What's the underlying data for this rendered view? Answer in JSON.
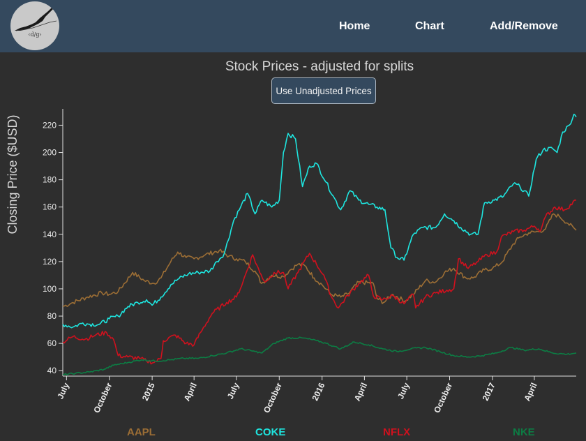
{
  "nav": {
    "logo_text": "‹d/g›",
    "items": [
      "Home",
      "Chart",
      "Add/Remove"
    ]
  },
  "button": {
    "label": "Use Unadjusted Prices"
  },
  "colors": {
    "background": "#2e2e2e",
    "navbar": "#34495e",
    "AAPL": "#9c6e35",
    "COKE": "#1ee6e0",
    "NFLX": "#d0111e",
    "NKE": "#0c7d44"
  },
  "chart_data": {
    "type": "line",
    "title": "Stock Prices - adjusted for splits",
    "ylabel": "Closing Price ($USD)",
    "xlabel": "",
    "ylim": [
      36,
      232
    ],
    "xlim": [
      "2014-06-23",
      "2017-06-30"
    ],
    "y_ticks": [
      40,
      60,
      80,
      100,
      120,
      140,
      160,
      180,
      200,
      220
    ],
    "x_ticks": [
      {
        "label": "July",
        "date": "2014-07-01"
      },
      {
        "label": "October",
        "date": "2014-10-01"
      },
      {
        "label": "2015",
        "date": "2015-01-01"
      },
      {
        "label": "April",
        "date": "2015-04-01"
      },
      {
        "label": "July",
        "date": "2015-07-01"
      },
      {
        "label": "October",
        "date": "2015-10-01"
      },
      {
        "label": "2016",
        "date": "2016-01-01"
      },
      {
        "label": "April",
        "date": "2016-04-01"
      },
      {
        "label": "July",
        "date": "2016-07-01"
      },
      {
        "label": "October",
        "date": "2016-10-01"
      },
      {
        "label": "2017",
        "date": "2017-01-01"
      },
      {
        "label": "April",
        "date": "2017-04-01"
      }
    ],
    "legend_position": "bottom",
    "grid": false,
    "series": [
      {
        "name": "AAPL",
        "color": "#9c6e35",
        "points": [
          [
            "2014-06-23",
            87
          ],
          [
            "2014-07-15",
            90
          ],
          [
            "2014-08-15",
            94
          ],
          [
            "2014-09-15",
            97
          ],
          [
            "2014-10-01",
            96
          ],
          [
            "2014-10-20",
            98
          ],
          [
            "2014-11-20",
            112
          ],
          [
            "2014-12-15",
            106
          ],
          [
            "2015-01-05",
            104
          ],
          [
            "2015-01-20",
            108
          ],
          [
            "2015-02-10",
            120
          ],
          [
            "2015-02-25",
            127
          ],
          [
            "2015-03-15",
            123
          ],
          [
            "2015-04-01",
            122
          ],
          [
            "2015-04-25",
            125
          ],
          [
            "2015-05-25",
            128
          ],
          [
            "2015-06-15",
            124
          ],
          [
            "2015-07-01",
            122
          ],
          [
            "2015-07-20",
            120
          ],
          [
            "2015-08-10",
            113
          ],
          [
            "2015-08-24",
            104
          ],
          [
            "2015-09-15",
            110
          ],
          [
            "2015-10-10",
            109
          ],
          [
            "2015-10-25",
            114
          ],
          [
            "2015-11-10",
            118
          ],
          [
            "2015-11-25",
            117
          ],
          [
            "2015-12-15",
            108
          ],
          [
            "2016-01-01",
            103
          ],
          [
            "2016-01-20",
            96
          ],
          [
            "2016-02-10",
            94
          ],
          [
            "2016-02-25",
            96
          ],
          [
            "2016-03-20",
            105
          ],
          [
            "2016-04-20",
            104
          ],
          [
            "2016-04-28",
            93
          ],
          [
            "2016-05-12",
            90
          ],
          [
            "2016-06-01",
            96
          ],
          [
            "2016-06-27",
            91
          ],
          [
            "2016-07-15",
            96
          ],
          [
            "2016-08-10",
            106
          ],
          [
            "2016-09-01",
            105
          ],
          [
            "2016-09-20",
            112
          ],
          [
            "2016-10-10",
            115
          ],
          [
            "2016-11-05",
            108
          ],
          [
            "2016-11-20",
            108
          ],
          [
            "2016-12-15",
            114
          ],
          [
            "2017-01-01",
            115
          ],
          [
            "2017-01-20",
            119
          ],
          [
            "2017-02-15",
            133
          ],
          [
            "2017-03-01",
            138
          ],
          [
            "2017-03-20",
            141
          ],
          [
            "2017-04-10",
            142
          ],
          [
            "2017-04-25",
            144
          ],
          [
            "2017-05-12",
            155
          ],
          [
            "2017-05-25",
            153
          ],
          [
            "2017-06-12",
            148
          ],
          [
            "2017-06-30",
            143
          ]
        ]
      },
      {
        "name": "COKE",
        "color": "#1ee6e0",
        "points": [
          [
            "2014-06-23",
            74
          ],
          [
            "2014-07-15",
            72
          ],
          [
            "2014-08-05",
            75
          ],
          [
            "2014-08-20",
            74
          ],
          [
            "2014-09-10",
            74
          ],
          [
            "2014-10-01",
            78
          ],
          [
            "2014-10-20",
            80
          ],
          [
            "2014-11-10",
            87
          ],
          [
            "2014-12-01",
            90
          ],
          [
            "2014-12-20",
            92
          ],
          [
            "2015-01-01",
            88
          ],
          [
            "2015-01-20",
            94
          ],
          [
            "2015-02-10",
            103
          ],
          [
            "2015-02-25",
            107
          ],
          [
            "2015-03-20",
            111
          ],
          [
            "2015-04-10",
            112
          ],
          [
            "2015-05-05",
            113
          ],
          [
            "2015-05-20",
            120
          ],
          [
            "2015-06-05",
            126
          ],
          [
            "2015-06-25",
            150
          ],
          [
            "2015-07-10",
            160
          ],
          [
            "2015-07-25",
            170
          ],
          [
            "2015-08-10",
            155
          ],
          [
            "2015-08-25",
            165
          ],
          [
            "2015-09-15",
            160
          ],
          [
            "2015-10-01",
            165
          ],
          [
            "2015-10-10",
            200
          ],
          [
            "2015-10-20",
            214
          ],
          [
            "2015-11-05",
            210
          ],
          [
            "2015-11-20",
            175
          ],
          [
            "2015-12-05",
            190
          ],
          [
            "2015-12-20",
            192
          ],
          [
            "2016-01-10",
            178
          ],
          [
            "2016-01-25",
            168
          ],
          [
            "2016-02-10",
            158
          ],
          [
            "2016-03-01",
            172
          ],
          [
            "2016-03-20",
            165
          ],
          [
            "2016-04-10",
            162
          ],
          [
            "2016-04-28",
            160
          ],
          [
            "2016-05-15",
            158
          ],
          [
            "2016-05-28",
            130
          ],
          [
            "2016-06-10",
            123
          ],
          [
            "2016-06-25",
            121
          ],
          [
            "2016-07-15",
            140
          ],
          [
            "2016-08-05",
            145
          ],
          [
            "2016-09-01",
            145
          ],
          [
            "2016-09-20",
            155
          ],
          [
            "2016-10-10",
            150
          ],
          [
            "2016-10-25",
            145
          ],
          [
            "2016-11-15",
            140
          ],
          [
            "2016-12-01",
            140
          ],
          [
            "2016-12-15",
            163
          ],
          [
            "2017-01-05",
            165
          ],
          [
            "2017-01-25",
            168
          ],
          [
            "2017-02-15",
            177
          ],
          [
            "2017-03-01",
            175
          ],
          [
            "2017-03-20",
            168
          ],
          [
            "2017-04-05",
            195
          ],
          [
            "2017-04-20",
            202
          ],
          [
            "2017-05-10",
            203
          ],
          [
            "2017-05-20",
            200
          ],
          [
            "2017-06-01",
            215
          ],
          [
            "2017-06-15",
            220
          ],
          [
            "2017-06-25",
            228
          ],
          [
            "2017-06-30",
            226
          ]
        ]
      },
      {
        "name": "NFLX",
        "color": "#d0111e",
        "points": [
          [
            "2014-06-23",
            61
          ],
          [
            "2014-07-15",
            65
          ],
          [
            "2014-08-10",
            63
          ],
          [
            "2014-09-01",
            66
          ],
          [
            "2014-09-25",
            68
          ],
          [
            "2014-10-10",
            63
          ],
          [
            "2014-10-20",
            51
          ],
          [
            "2014-11-10",
            50
          ],
          [
            "2014-12-05",
            49
          ],
          [
            "2014-12-20",
            47
          ],
          [
            "2015-01-05",
            46
          ],
          [
            "2015-01-20",
            49
          ],
          [
            "2015-01-25",
            62
          ],
          [
            "2015-02-20",
            66
          ],
          [
            "2015-03-15",
            60
          ],
          [
            "2015-04-01",
            59
          ],
          [
            "2015-04-15",
            68
          ],
          [
            "2015-05-10",
            82
          ],
          [
            "2015-06-10",
            90
          ],
          [
            "2015-07-01",
            94
          ],
          [
            "2015-07-15",
            105
          ],
          [
            "2015-08-05",
            125
          ],
          [
            "2015-08-20",
            112
          ],
          [
            "2015-09-01",
            105
          ],
          [
            "2015-09-20",
            112
          ],
          [
            "2015-10-10",
            112
          ],
          [
            "2015-10-20",
            100
          ],
          [
            "2015-11-10",
            112
          ],
          [
            "2015-12-05",
            126
          ],
          [
            "2015-12-20",
            118
          ],
          [
            "2016-01-05",
            110
          ],
          [
            "2016-01-20",
            95
          ],
          [
            "2016-02-05",
            86
          ],
          [
            "2016-02-25",
            95
          ],
          [
            "2016-03-20",
            104
          ],
          [
            "2016-04-10",
            110
          ],
          [
            "2016-04-20",
            95
          ],
          [
            "2016-05-10",
            92
          ],
          [
            "2016-06-01",
            95
          ],
          [
            "2016-06-25",
            89
          ],
          [
            "2016-07-15",
            96
          ],
          [
            "2016-07-20",
            86
          ],
          [
            "2016-08-10",
            94
          ],
          [
            "2016-09-01",
            97
          ],
          [
            "2016-09-25",
            99
          ],
          [
            "2016-10-10",
            100
          ],
          [
            "2016-10-20",
            122
          ],
          [
            "2016-11-10",
            115
          ],
          [
            "2016-12-01",
            120
          ],
          [
            "2016-12-20",
            125
          ],
          [
            "2017-01-10",
            127
          ],
          [
            "2017-01-20",
            138
          ],
          [
            "2017-02-15",
            142
          ],
          [
            "2017-03-10",
            143
          ],
          [
            "2017-04-01",
            146
          ],
          [
            "2017-04-15",
            143
          ],
          [
            "2017-04-25",
            153
          ],
          [
            "2017-05-15",
            160
          ],
          [
            "2017-06-05",
            158
          ],
          [
            "2017-06-30",
            165
          ]
        ]
      },
      {
        "name": "NKE",
        "color": "#0c7d44",
        "points": [
          [
            "2014-06-23",
            37
          ],
          [
            "2014-07-20",
            38
          ],
          [
            "2014-08-20",
            39
          ],
          [
            "2014-09-20",
            41
          ],
          [
            "2014-10-10",
            44
          ],
          [
            "2014-11-10",
            46
          ],
          [
            "2014-12-10",
            48
          ],
          [
            "2015-01-10",
            47
          ],
          [
            "2015-02-10",
            48
          ],
          [
            "2015-03-10",
            49
          ],
          [
            "2015-04-10",
            49
          ],
          [
            "2015-05-10",
            51
          ],
          [
            "2015-06-10",
            53
          ],
          [
            "2015-07-10",
            56
          ],
          [
            "2015-08-10",
            54
          ],
          [
            "2015-08-25",
            53
          ],
          [
            "2015-09-20",
            60
          ],
          [
            "2015-10-20",
            64
          ],
          [
            "2015-11-20",
            64
          ],
          [
            "2015-12-20",
            62
          ],
          [
            "2016-01-10",
            60
          ],
          [
            "2016-01-25",
            58
          ],
          [
            "2016-02-10",
            56
          ],
          [
            "2016-03-10",
            61
          ],
          [
            "2016-04-10",
            59
          ],
          [
            "2016-05-10",
            56
          ],
          [
            "2016-06-10",
            54
          ],
          [
            "2016-07-10",
            56
          ],
          [
            "2016-08-10",
            57
          ],
          [
            "2016-09-10",
            54
          ],
          [
            "2016-10-10",
            51
          ],
          [
            "2016-11-10",
            50
          ],
          [
            "2016-12-10",
            51
          ],
          [
            "2017-01-10",
            53
          ],
          [
            "2017-02-10",
            57
          ],
          [
            "2017-03-10",
            55
          ],
          [
            "2017-04-10",
            56
          ],
          [
            "2017-05-10",
            53
          ],
          [
            "2017-06-10",
            52
          ],
          [
            "2017-06-30",
            53
          ]
        ]
      }
    ]
  }
}
